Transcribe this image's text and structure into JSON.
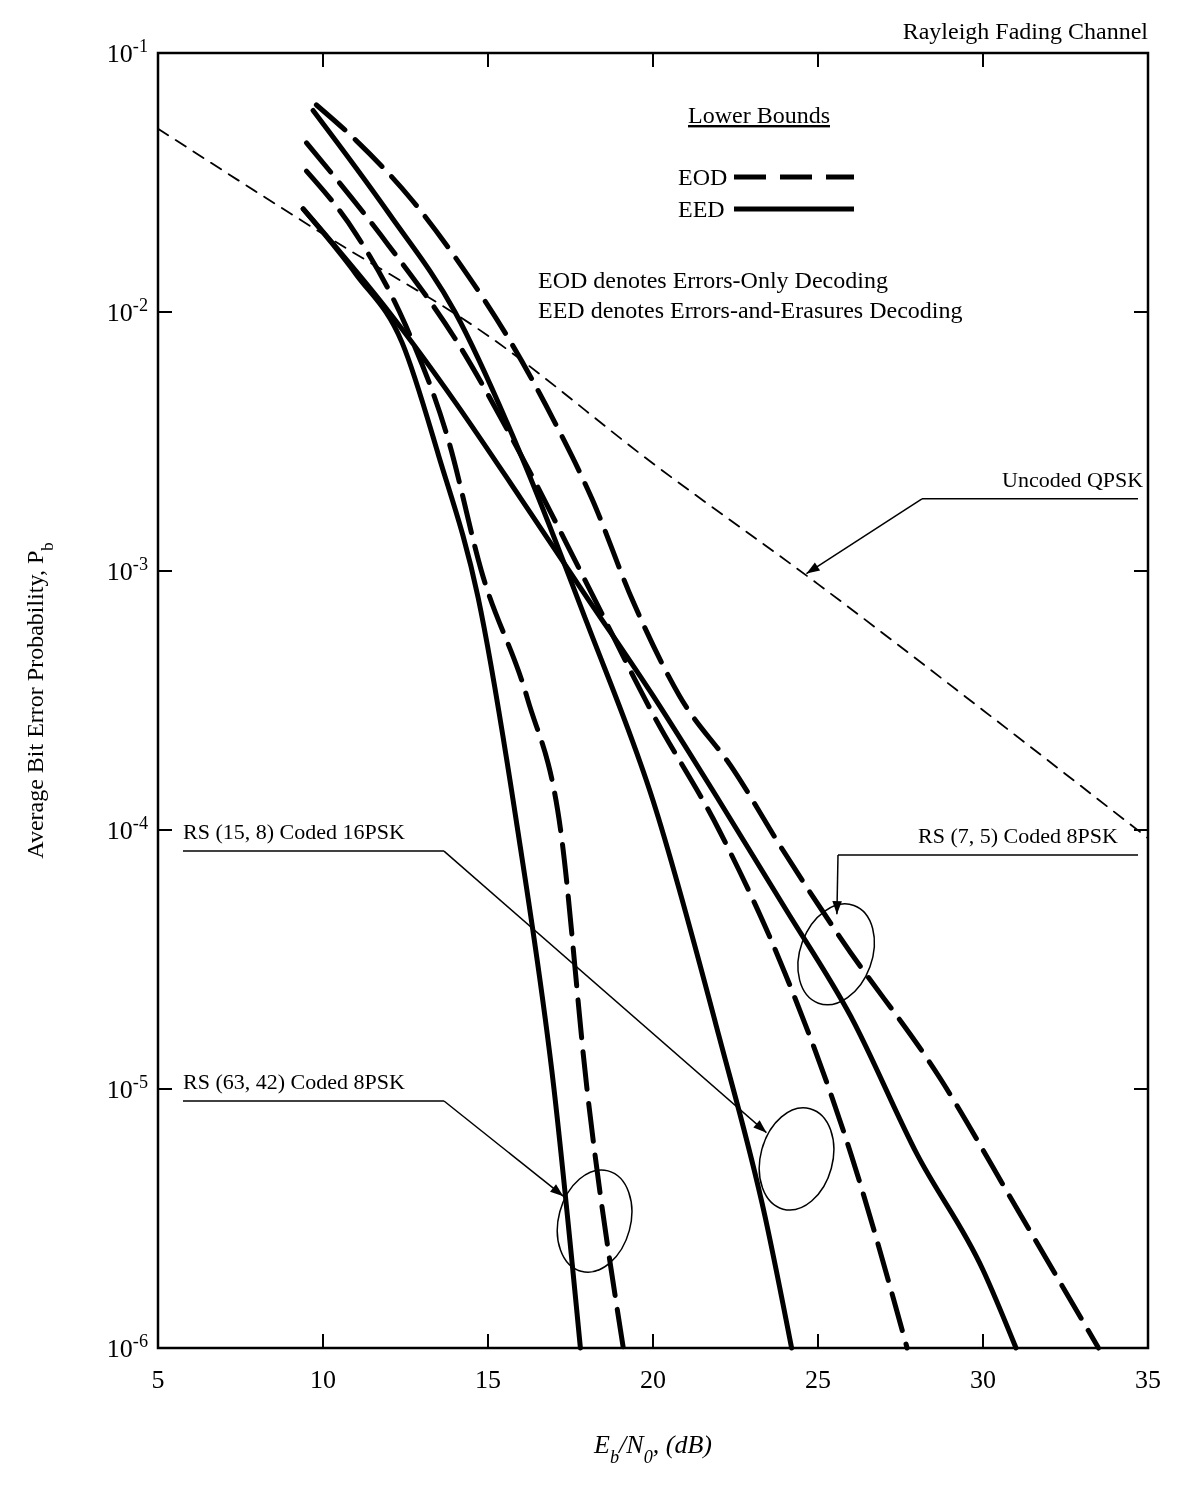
{
  "chart_data": {
    "type": "line",
    "title": "Rayleigh Fading Channel",
    "xlabel": "E$_{b}$/N$_{0}$,  (dB)",
    "ylabel": "Average Bit Error Probability,  P$_{b}$",
    "log": "y",
    "xlim": [
      5,
      35
    ],
    "ylim": [
      1e-06,
      0.1
    ],
    "xticks": [
      5,
      10,
      15,
      20,
      25,
      30,
      35
    ],
    "yticks": [
      {
        "value": 0.1,
        "label": "10$^{-1}$"
      },
      {
        "value": 0.01,
        "label": "10$^{-2}$"
      },
      {
        "value": 0.001,
        "label": "10$^{-3}$"
      },
      {
        "value": 0.0001,
        "label": "10$^{-4}$"
      },
      {
        "value": 1e-05,
        "label": "10$^{-5}$"
      },
      {
        "value": 1e-06,
        "label": "10$^{-6}$"
      }
    ],
    "grid": false,
    "legend": "top right",
    "legend_title": "Lower Bounds",
    "marker": "none",
    "series": [
      {
        "color": "#000000",
        "line_style": "dashed",
        "x": [
          5,
          10,
          15,
          20,
          25,
          30,
          35
        ],
        "values": [
          0.051,
          0.02,
          0.0081,
          0.0026,
          0.00089,
          0.00029,
          9.3e-05
        ]
      },
      {
        "name": "EOD",
        "color": "#000000",
        "line_style": "dashed",
        "x": [
          9.8,
          11,
          12.7,
          14.2,
          15.65,
          17,
          18.15,
          19.4,
          20.8,
          22.45,
          23.9,
          25.7,
          28.7,
          31,
          33.5
        ],
        "values": [
          0.063,
          0.046,
          0.027,
          0.015,
          0.0078,
          0.0038,
          0.0019,
          0.00076,
          0.00033,
          0.00017,
          8.5e-05,
          3.8e-05,
          1.1e-05,
          3.5e-06,
          1e-06
        ]
      },
      {
        "name": "EED",
        "color": "#000000",
        "line_style": "solid",
        "x": [
          9.4,
          12,
          14,
          16,
          18,
          20,
          22,
          24,
          26,
          28,
          30,
          31
        ],
        "values": [
          0.025,
          0.01,
          0.0045,
          0.0019,
          0.00079,
          0.00033,
          0.00013,
          5e-05,
          1.9e-05,
          5.6e-06,
          2e-06,
          1e-06
        ]
      },
      {
        "color": "#000000",
        "line_style": "solid",
        "x": [
          9.7,
          12,
          14,
          16,
          18,
          20,
          22,
          23.4,
          24.2
        ],
        "values": [
          0.06,
          0.024,
          0.01,
          0.0028,
          0.00063,
          0.00013,
          1.6e-05,
          3.2e-06,
          1e-06
        ]
      },
      {
        "color": "#000000",
        "line_style": "dashed",
        "x": [
          9.5,
          12,
          14,
          16,
          18,
          20,
          22,
          24,
          26,
          27.7
        ],
        "values": [
          0.045,
          0.018,
          0.0079,
          0.0028,
          0.00089,
          0.00028,
          0.0001,
          2.8e-05,
          5.6e-06,
          1e-06
        ]
      },
      {
        "color": "#000000",
        "line_style": "solid",
        "x": [
          9.4,
          11,
          12.4,
          13.5,
          14.7,
          15.9,
          17,
          17.8
        ],
        "values": [
          0.025,
          0.014,
          0.0076,
          0.0028,
          0.00079,
          0.0001,
          1e-05,
          1e-06
        ]
      },
      {
        "color": "#000000",
        "line_style": "dashed",
        "x": [
          9.5,
          11,
          12.5,
          13.8,
          14.8,
          16.2,
          17.2,
          18,
          19.1
        ],
        "values": [
          0.035,
          0.02,
          0.0089,
          0.0032,
          0.001,
          0.00032,
          0.0001,
          1e-05,
          1e-06
        ]
      }
    ],
    "annotations": [
      "EOD denotes Errors-Only Decoding",
      "EED denotes Errors-and-Erasures Decoding",
      "Uncoded QPSK",
      "RS (7, 5) Coded 8PSK",
      "RS (15, 8) Coded 16PSK",
      "RS (63, 42) Coded 8PSK"
    ]
  }
}
